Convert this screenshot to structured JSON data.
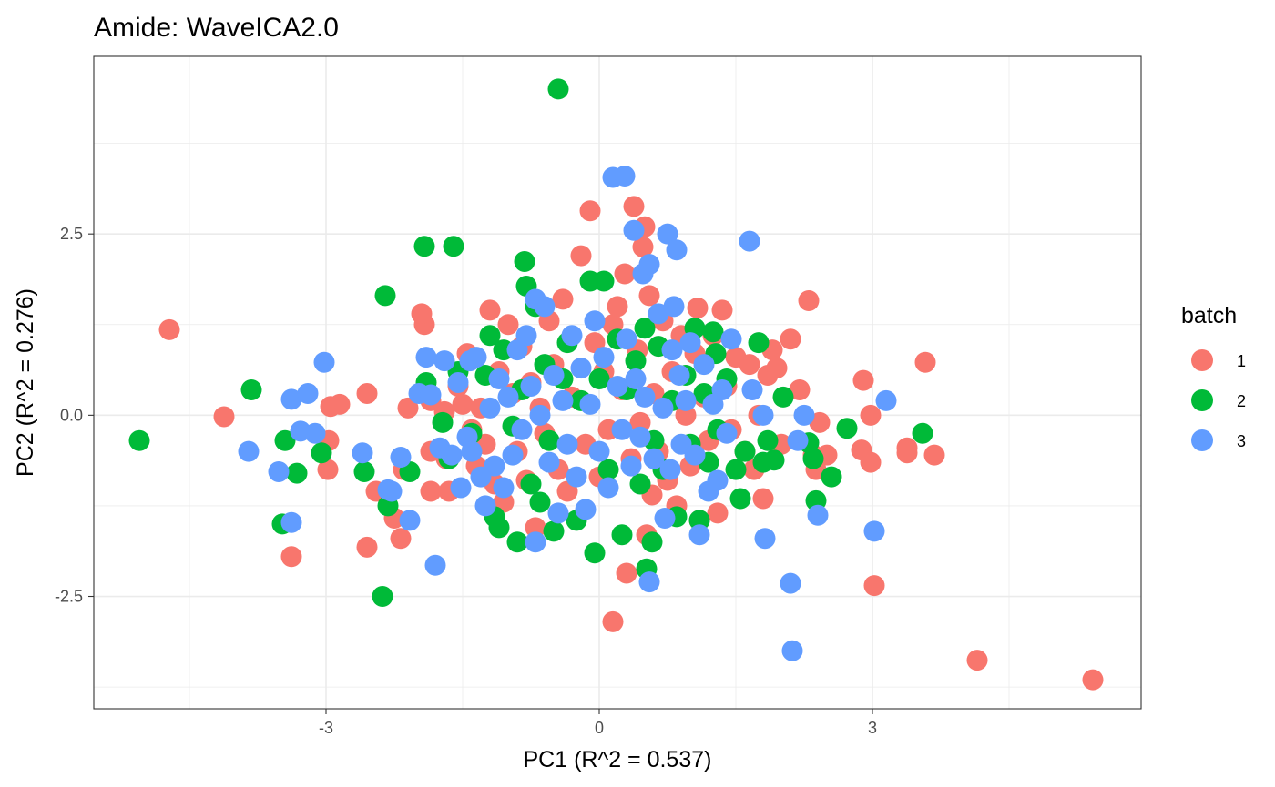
{
  "chart_data": {
    "type": "scatter",
    "title": "Amide: WaveICA2.0",
    "xlabel": "PC1 (R^2 = 0.537)",
    "ylabel": "PC2 (R^2 = 0.276)",
    "xlim": [
      -5.55,
      5.95
    ],
    "ylim": [
      -4.05,
      4.95
    ],
    "x_ticks": [
      -3,
      0,
      3
    ],
    "y_ticks": [
      -2.5,
      0.0,
      2.5
    ],
    "x_tick_labels": [
      "-3",
      "0",
      "3"
    ],
    "y_tick_labels": [
      "-2.5",
      "0.0",
      "2.5"
    ],
    "grid": true,
    "legend": {
      "title": "batch",
      "placement": "right"
    },
    "series": [
      {
        "name": "1",
        "color": "#F8766D",
        "points": [
          [
            -4.72,
            1.18
          ],
          [
            -4.12,
            -0.02
          ],
          [
            -3.38,
            -1.95
          ],
          [
            -2.95,
            0.12
          ],
          [
            -2.85,
            0.15
          ],
          [
            -2.97,
            -0.35
          ],
          [
            -2.98,
            -0.75
          ],
          [
            -2.55,
            0.3
          ],
          [
            -2.55,
            -1.82
          ],
          [
            -2.45,
            -1.05
          ],
          [
            -2.25,
            -1.42
          ],
          [
            -2.18,
            -1.7
          ],
          [
            -2.1,
            0.1
          ],
          [
            -2.15,
            -0.75
          ],
          [
            -1.92,
            1.25
          ],
          [
            -1.95,
            1.4
          ],
          [
            -1.85,
            0.2
          ],
          [
            -1.85,
            -0.5
          ],
          [
            -1.85,
            -1.05
          ],
          [
            -1.7,
            0.05
          ],
          [
            -1.68,
            -0.6
          ],
          [
            -1.65,
            -1.05
          ],
          [
            -1.55,
            0.4
          ],
          [
            -1.5,
            0.15
          ],
          [
            -1.45,
            0.85
          ],
          [
            -1.4,
            -0.2
          ],
          [
            -1.35,
            -0.7
          ],
          [
            -1.3,
            0.1
          ],
          [
            -1.25,
            -0.4
          ],
          [
            -1.2,
            1.45
          ],
          [
            -1.15,
            -0.95
          ],
          [
            -1.1,
            0.6
          ],
          [
            -1.05,
            -1.2
          ],
          [
            -1.0,
            1.25
          ],
          [
            -0.95,
            0.3
          ],
          [
            -0.9,
            -0.5
          ],
          [
            -0.85,
            0.95
          ],
          [
            -0.8,
            -0.9
          ],
          [
            -0.75,
            0.45
          ],
          [
            -0.7,
            -1.55
          ],
          [
            -0.65,
            0.1
          ],
          [
            -0.6,
            -0.25
          ],
          [
            -0.55,
            1.3
          ],
          [
            -0.5,
            0.7
          ],
          [
            -0.45,
            -0.75
          ],
          [
            -0.4,
            1.6
          ],
          [
            -0.35,
            -1.05
          ],
          [
            -0.3,
            0.25
          ],
          [
            -0.2,
            2.2
          ],
          [
            -0.15,
            -0.4
          ],
          [
            -0.1,
            2.82
          ],
          [
            -0.05,
            1.0
          ],
          [
            0.0,
            -0.85
          ],
          [
            0.05,
            0.6
          ],
          [
            0.1,
            -0.2
          ],
          [
            0.15,
            1.25
          ],
          [
            0.15,
            -2.85
          ],
          [
            0.2,
            1.5
          ],
          [
            0.25,
            0.35
          ],
          [
            0.28,
            1.95
          ],
          [
            0.3,
            -2.18
          ],
          [
            0.35,
            -0.6
          ],
          [
            0.38,
            2.88
          ],
          [
            0.42,
            0.9
          ],
          [
            0.45,
            -0.1
          ],
          [
            0.48,
            2.32
          ],
          [
            0.5,
            2.6
          ],
          [
            0.52,
            -1.65
          ],
          [
            0.55,
            1.65
          ],
          [
            0.58,
            -1.1
          ],
          [
            0.6,
            0.3
          ],
          [
            0.65,
            -0.5
          ],
          [
            0.7,
            1.3
          ],
          [
            0.75,
            -0.9
          ],
          [
            0.8,
            0.6
          ],
          [
            0.85,
            -1.25
          ],
          [
            0.9,
            1.1
          ],
          [
            0.95,
            0.0
          ],
          [
            1.0,
            -0.7
          ],
          [
            1.05,
            0.85
          ],
          [
            1.08,
            1.48
          ],
          [
            1.1,
            -1.45
          ],
          [
            1.15,
            0.25
          ],
          [
            1.2,
            -0.35
          ],
          [
            1.25,
            1.1
          ],
          [
            1.3,
            -1.35
          ],
          [
            1.35,
            1.45
          ],
          [
            1.4,
            0.4
          ],
          [
            1.45,
            -0.2
          ],
          [
            1.5,
            0.8
          ],
          [
            1.6,
            -0.5
          ],
          [
            1.65,
            0.7
          ],
          [
            1.7,
            -0.75
          ],
          [
            1.75,
            0.0
          ],
          [
            1.8,
            -1.15
          ],
          [
            1.85,
            0.55
          ],
          [
            1.9,
            0.9
          ],
          [
            1.95,
            0.65
          ],
          [
            2.0,
            -0.4
          ],
          [
            2.1,
            1.05
          ],
          [
            2.2,
            0.35
          ],
          [
            2.3,
            1.58
          ],
          [
            2.35,
            -0.55
          ],
          [
            2.38,
            -0.75
          ],
          [
            2.42,
            -0.1
          ],
          [
            2.5,
            -0.55
          ],
          [
            2.9,
            0.48
          ],
          [
            2.88,
            -0.48
          ],
          [
            2.98,
            -0.65
          ],
          [
            2.98,
            0.0
          ],
          [
            3.02,
            -2.35
          ],
          [
            3.38,
            -0.45
          ],
          [
            3.38,
            -0.52
          ],
          [
            3.58,
            0.73
          ],
          [
            3.68,
            -0.55
          ],
          [
            4.15,
            -3.38
          ],
          [
            5.42,
            -3.65
          ]
        ]
      },
      {
        "name": "2",
        "color": "#00BA38",
        "points": [
          [
            -5.05,
            -0.35
          ],
          [
            -3.82,
            0.35
          ],
          [
            -3.48,
            -1.5
          ],
          [
            -3.45,
            -0.35
          ],
          [
            -3.32,
            -0.8
          ],
          [
            -3.05,
            -0.52
          ],
          [
            -2.58,
            -0.78
          ],
          [
            -2.35,
            1.65
          ],
          [
            -2.38,
            -2.5
          ],
          [
            -2.32,
            -1.25
          ],
          [
            -2.08,
            -0.78
          ],
          [
            -1.92,
            2.33
          ],
          [
            -1.9,
            0.45
          ],
          [
            -1.6,
            2.33
          ],
          [
            -1.72,
            -0.1
          ],
          [
            -1.65,
            -0.6
          ],
          [
            -1.55,
            0.6
          ],
          [
            -1.4,
            -0.25
          ],
          [
            -1.25,
            0.55
          ],
          [
            -1.2,
            1.1
          ],
          [
            -1.15,
            -1.4
          ],
          [
            -1.1,
            -1.55
          ],
          [
            -1.05,
            0.9
          ],
          [
            -0.95,
            -0.15
          ],
          [
            -0.9,
            -1.75
          ],
          [
            -0.82,
            2.12
          ],
          [
            -0.8,
            1.78
          ],
          [
            -0.85,
            0.35
          ],
          [
            -0.75,
            -0.95
          ],
          [
            -0.7,
            1.5
          ],
          [
            -0.65,
            -1.2
          ],
          [
            -0.6,
            0.7
          ],
          [
            -0.55,
            -0.35
          ],
          [
            -0.5,
            -1.6
          ],
          [
            -0.45,
            4.5
          ],
          [
            -0.4,
            0.5
          ],
          [
            -0.35,
            1.0
          ],
          [
            -0.25,
            -1.45
          ],
          [
            -0.2,
            0.2
          ],
          [
            -0.1,
            1.85
          ],
          [
            -0.05,
            -1.9
          ],
          [
            0.0,
            0.5
          ],
          [
            0.05,
            1.85
          ],
          [
            0.1,
            -0.75
          ],
          [
            0.2,
            1.05
          ],
          [
            0.25,
            -1.65
          ],
          [
            0.3,
            0.35
          ],
          [
            0.4,
            0.75
          ],
          [
            0.45,
            -0.95
          ],
          [
            0.5,
            1.2
          ],
          [
            0.52,
            -2.12
          ],
          [
            0.58,
            -1.75
          ],
          [
            0.6,
            -0.35
          ],
          [
            0.65,
            0.95
          ],
          [
            0.7,
            -0.75
          ],
          [
            0.8,
            0.2
          ],
          [
            0.85,
            -1.4
          ],
          [
            0.95,
            0.55
          ],
          [
            1.0,
            -0.4
          ],
          [
            1.05,
            1.2
          ],
          [
            1.1,
            -1.45
          ],
          [
            1.15,
            0.3
          ],
          [
            1.2,
            -0.65
          ],
          [
            1.25,
            1.15
          ],
          [
            1.28,
            0.85
          ],
          [
            1.3,
            -0.2
          ],
          [
            1.4,
            0.5
          ],
          [
            1.5,
            -0.75
          ],
          [
            1.55,
            -1.15
          ],
          [
            1.6,
            -0.5
          ],
          [
            1.75,
            1.0
          ],
          [
            1.8,
            -0.65
          ],
          [
            1.85,
            -0.35
          ],
          [
            1.92,
            -0.62
          ],
          [
            2.02,
            0.25
          ],
          [
            2.3,
            -0.38
          ],
          [
            2.38,
            -1.18
          ],
          [
            2.35,
            -0.6
          ],
          [
            2.55,
            -0.85
          ],
          [
            2.72,
            -0.18
          ],
          [
            3.55,
            -0.25
          ]
        ]
      },
      {
        "name": "3",
        "color": "#619CFF",
        "points": [
          [
            -3.85,
            -0.5
          ],
          [
            -3.52,
            -0.78
          ],
          [
            -3.38,
            0.22
          ],
          [
            -3.38,
            -1.48
          ],
          [
            -3.28,
            -0.22
          ],
          [
            -3.2,
            0.3
          ],
          [
            -3.12,
            -0.25
          ],
          [
            -3.02,
            0.73
          ],
          [
            -2.6,
            -0.52
          ],
          [
            -2.32,
            -1.03
          ],
          [
            -2.28,
            -1.05
          ],
          [
            -2.18,
            -0.58
          ],
          [
            -2.08,
            -1.45
          ],
          [
            -1.98,
            0.3
          ],
          [
            -1.9,
            0.8
          ],
          [
            -1.85,
            0.28
          ],
          [
            -1.8,
            -2.07
          ],
          [
            -1.75,
            -0.45
          ],
          [
            -1.7,
            0.75
          ],
          [
            -1.62,
            -0.55
          ],
          [
            -1.55,
            0.45
          ],
          [
            -1.52,
            -1.0
          ],
          [
            -1.45,
            -0.3
          ],
          [
            -1.42,
            0.75
          ],
          [
            -1.4,
            -0.5
          ],
          [
            -1.35,
            0.8
          ],
          [
            -1.3,
            -0.85
          ],
          [
            -1.25,
            -1.25
          ],
          [
            -1.2,
            0.1
          ],
          [
            -1.15,
            -0.7
          ],
          [
            -1.1,
            0.5
          ],
          [
            -1.05,
            -1.0
          ],
          [
            -1.0,
            0.25
          ],
          [
            -0.95,
            -0.55
          ],
          [
            -0.9,
            0.9
          ],
          [
            -0.85,
            -0.2
          ],
          [
            -0.8,
            1.1
          ],
          [
            -0.75,
            0.4
          ],
          [
            -0.7,
            -1.75
          ],
          [
            -0.7,
            1.6
          ],
          [
            -0.65,
            0.0
          ],
          [
            -0.6,
            1.5
          ],
          [
            -0.55,
            -0.65
          ],
          [
            -0.5,
            0.55
          ],
          [
            -0.45,
            -1.35
          ],
          [
            -0.4,
            0.2
          ],
          [
            -0.35,
            -0.4
          ],
          [
            -0.3,
            1.1
          ],
          [
            -0.25,
            -0.85
          ],
          [
            -0.2,
            0.65
          ],
          [
            -0.15,
            -1.3
          ],
          [
            -0.1,
            0.15
          ],
          [
            -0.05,
            1.3
          ],
          [
            0.0,
            -0.5
          ],
          [
            0.05,
            0.8
          ],
          [
            0.1,
            -1.0
          ],
          [
            0.15,
            3.28
          ],
          [
            0.2,
            0.4
          ],
          [
            0.25,
            -0.2
          ],
          [
            0.28,
            3.3
          ],
          [
            0.3,
            1.05
          ],
          [
            0.35,
            -0.7
          ],
          [
            0.38,
            2.55
          ],
          [
            0.4,
            0.5
          ],
          [
            0.45,
            -0.3
          ],
          [
            0.48,
            1.95
          ],
          [
            0.5,
            0.25
          ],
          [
            0.55,
            2.08
          ],
          [
            0.55,
            -2.3
          ],
          [
            0.6,
            -0.6
          ],
          [
            0.65,
            1.4
          ],
          [
            0.7,
            0.1
          ],
          [
            0.72,
            -1.42
          ],
          [
            0.75,
            2.5
          ],
          [
            0.78,
            -0.75
          ],
          [
            0.8,
            0.9
          ],
          [
            0.82,
            1.5
          ],
          [
            0.85,
            2.28
          ],
          [
            0.88,
            0.55
          ],
          [
            0.9,
            -0.4
          ],
          [
            0.95,
            0.2
          ],
          [
            1.0,
            1.0
          ],
          [
            1.05,
            -0.55
          ],
          [
            1.1,
            -1.65
          ],
          [
            1.15,
            0.7
          ],
          [
            1.2,
            -1.05
          ],
          [
            1.25,
            0.15
          ],
          [
            1.3,
            -0.9
          ],
          [
            1.35,
            0.35
          ],
          [
            1.4,
            -0.25
          ],
          [
            1.45,
            1.05
          ],
          [
            1.65,
            2.4
          ],
          [
            1.68,
            0.35
          ],
          [
            1.8,
            0.0
          ],
          [
            1.82,
            -1.7
          ],
          [
            2.1,
            -2.32
          ],
          [
            2.12,
            -3.25
          ],
          [
            2.18,
            -0.35
          ],
          [
            2.25,
            0.0
          ],
          [
            2.4,
            -1.38
          ],
          [
            3.02,
            -1.6
          ],
          [
            3.15,
            0.2
          ]
        ]
      }
    ]
  }
}
